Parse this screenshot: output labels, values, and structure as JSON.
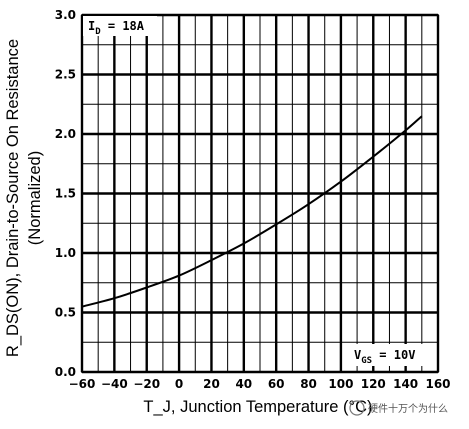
{
  "chart_data": {
    "type": "line",
    "title": "",
    "xlabel": "T_J, Junction Temperature (°C)",
    "ylabel_main": "R_DS(ON), Drain-to-Source On Resistance",
    "ylabel_sub": "(Normalized)",
    "xlim": [
      -60,
      160
    ],
    "ylim": [
      0.0,
      3.0
    ],
    "x_ticks": [
      -60,
      -40,
      -20,
      0,
      20,
      40,
      60,
      80,
      100,
      120,
      140,
      160
    ],
    "x_tick_labels": [
      "-60",
      "-40",
      "-20",
      "0",
      "20",
      "40",
      "60",
      "80",
      "100",
      "120",
      "140",
      "160"
    ],
    "y_ticks": [
      0.0,
      0.5,
      1.0,
      1.5,
      2.0,
      2.5,
      3.0
    ],
    "y_tick_labels": [
      "0.0",
      "0.5",
      "1.0",
      "1.5",
      "2.0",
      "2.5",
      "3.0"
    ],
    "grid": true,
    "annotations": {
      "id": {
        "base": "I",
        "sub": "D",
        "rest": " = 18A"
      },
      "vgs": {
        "base": "V",
        "sub": "GS",
        "rest": " = 10V"
      }
    },
    "series": [
      {
        "x": [
          -60,
          -40,
          -20,
          0,
          20,
          40,
          60,
          80,
          100,
          120,
          140,
          150
        ],
        "y": [
          0.55,
          0.62,
          0.71,
          0.81,
          0.94,
          1.08,
          1.24,
          1.41,
          1.6,
          1.81,
          2.03,
          2.15
        ]
      }
    ]
  },
  "watermark": "硬件十万个为什么"
}
